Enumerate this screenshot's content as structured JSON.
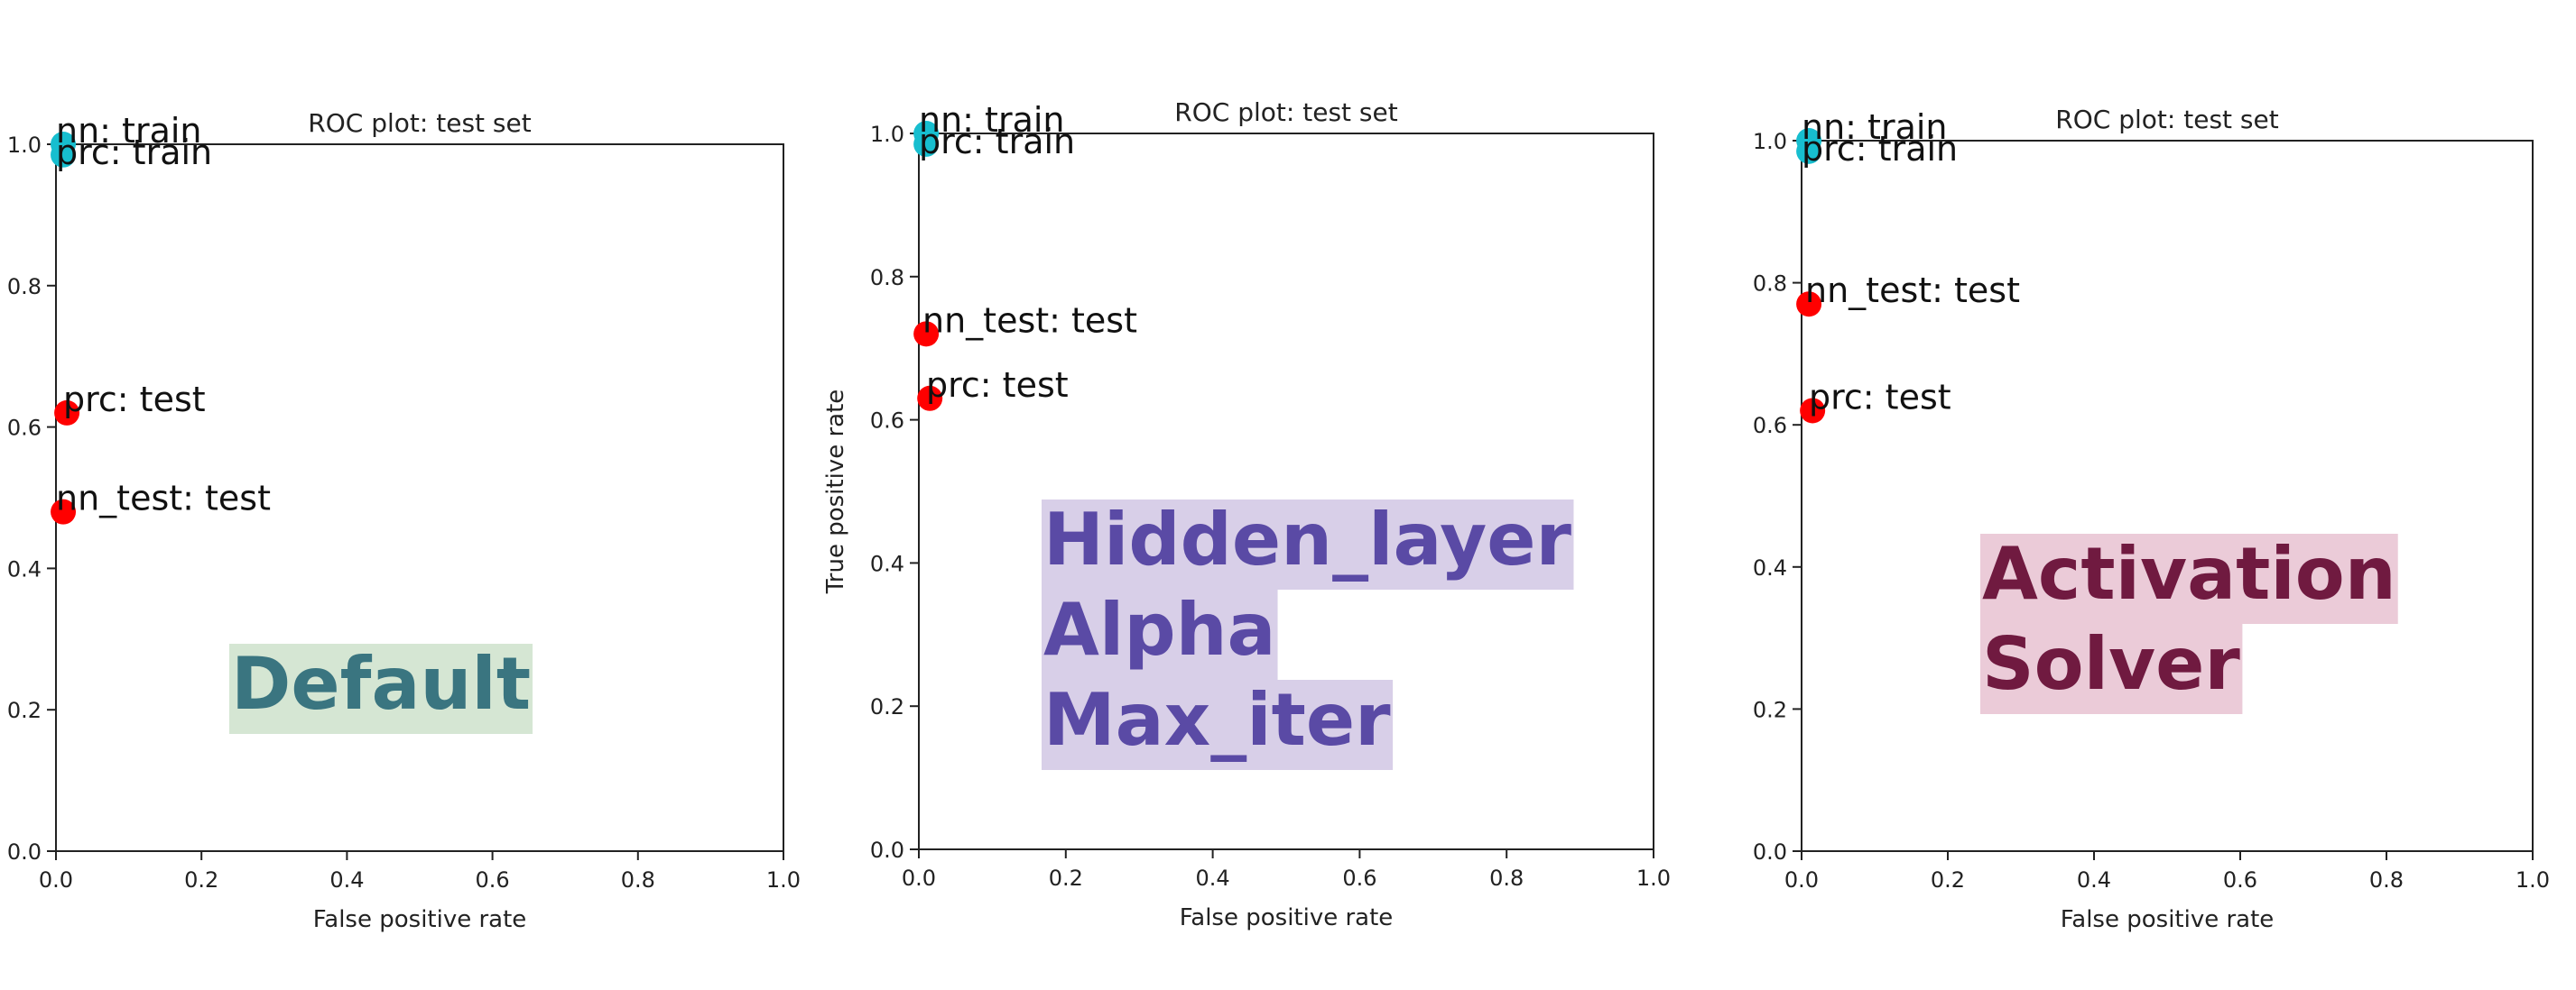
{
  "chart_data": [
    {
      "type": "scatter",
      "title": "ROC plot: test set",
      "xlabel": "False positive rate",
      "ylabel": "",
      "xlim": [
        0,
        1
      ],
      "ylim": [
        0,
        1
      ],
      "xticks": [
        "0.0",
        "0.2",
        "0.4",
        "0.6",
        "0.8",
        "1.0"
      ],
      "yticks": [
        "0.0",
        "0.2",
        "0.4",
        "0.6",
        "0.8",
        "1.0"
      ],
      "grid": false,
      "points": [
        {
          "label": "nn: train",
          "x": 0.01,
          "y": 1.0,
          "color": "#17becf"
        },
        {
          "label": "prc: train",
          "x": 0.01,
          "y": 0.985,
          "color": "#17becf"
        },
        {
          "label": "prc: test",
          "x": 0.015,
          "y": 0.62,
          "color": "#ff0000"
        },
        {
          "label": "nn_test: test",
          "x": 0.01,
          "y": 0.48,
          "color": "#ff0000"
        }
      ],
      "overlay": {
        "lines": [
          "Default"
        ],
        "text_color": "#3a7580",
        "bg_color": "#d5e6d3"
      }
    },
    {
      "type": "scatter",
      "title": "ROC plot: test set",
      "xlabel": "False positive rate",
      "ylabel": "True positive rate",
      "xlim": [
        0,
        1
      ],
      "ylim": [
        0,
        1
      ],
      "xticks": [
        "0.0",
        "0.2",
        "0.4",
        "0.6",
        "0.8",
        "1.0"
      ],
      "yticks": [
        "0.0",
        "0.2",
        "0.4",
        "0.6",
        "0.8",
        "1.0"
      ],
      "grid": false,
      "points": [
        {
          "label": "nn: train",
          "x": 0.01,
          "y": 1.0,
          "color": "#17becf"
        },
        {
          "label": "prc: train",
          "x": 0.01,
          "y": 0.985,
          "color": "#17becf"
        },
        {
          "label": "nn_test: test",
          "x": 0.01,
          "y": 0.72,
          "color": "#ff0000"
        },
        {
          "label": "prc: test",
          "x": 0.015,
          "y": 0.63,
          "color": "#ff0000"
        }
      ],
      "overlay": {
        "lines": [
          "Hidden_layer",
          "Alpha",
          "Max_iter"
        ],
        "text_color": "#5a4aa5",
        "bg_color": "#d8cfe8"
      }
    },
    {
      "type": "scatter",
      "title": "ROC plot: test set",
      "xlabel": "False positive rate",
      "ylabel": "",
      "xlim": [
        0,
        1
      ],
      "ylim": [
        0,
        1
      ],
      "xticks": [
        "0.0",
        "0.2",
        "0.4",
        "0.6",
        "0.8",
        "1.0"
      ],
      "yticks": [
        "0.0",
        "0.2",
        "0.4",
        "0.6",
        "0.8",
        "1.0"
      ],
      "grid": false,
      "points": [
        {
          "label": "nn: train",
          "x": 0.01,
          "y": 1.0,
          "color": "#17becf"
        },
        {
          "label": "prc: train",
          "x": 0.01,
          "y": 0.985,
          "color": "#17becf"
        },
        {
          "label": "nn_test: test",
          "x": 0.01,
          "y": 0.77,
          "color": "#ff0000"
        },
        {
          "label": "prc: test",
          "x": 0.015,
          "y": 0.62,
          "color": "#ff0000"
        }
      ],
      "overlay": {
        "lines": [
          "Activation",
          "Solver"
        ],
        "text_color": "#701a40",
        "bg_color": "#ebcbd8"
      }
    }
  ]
}
